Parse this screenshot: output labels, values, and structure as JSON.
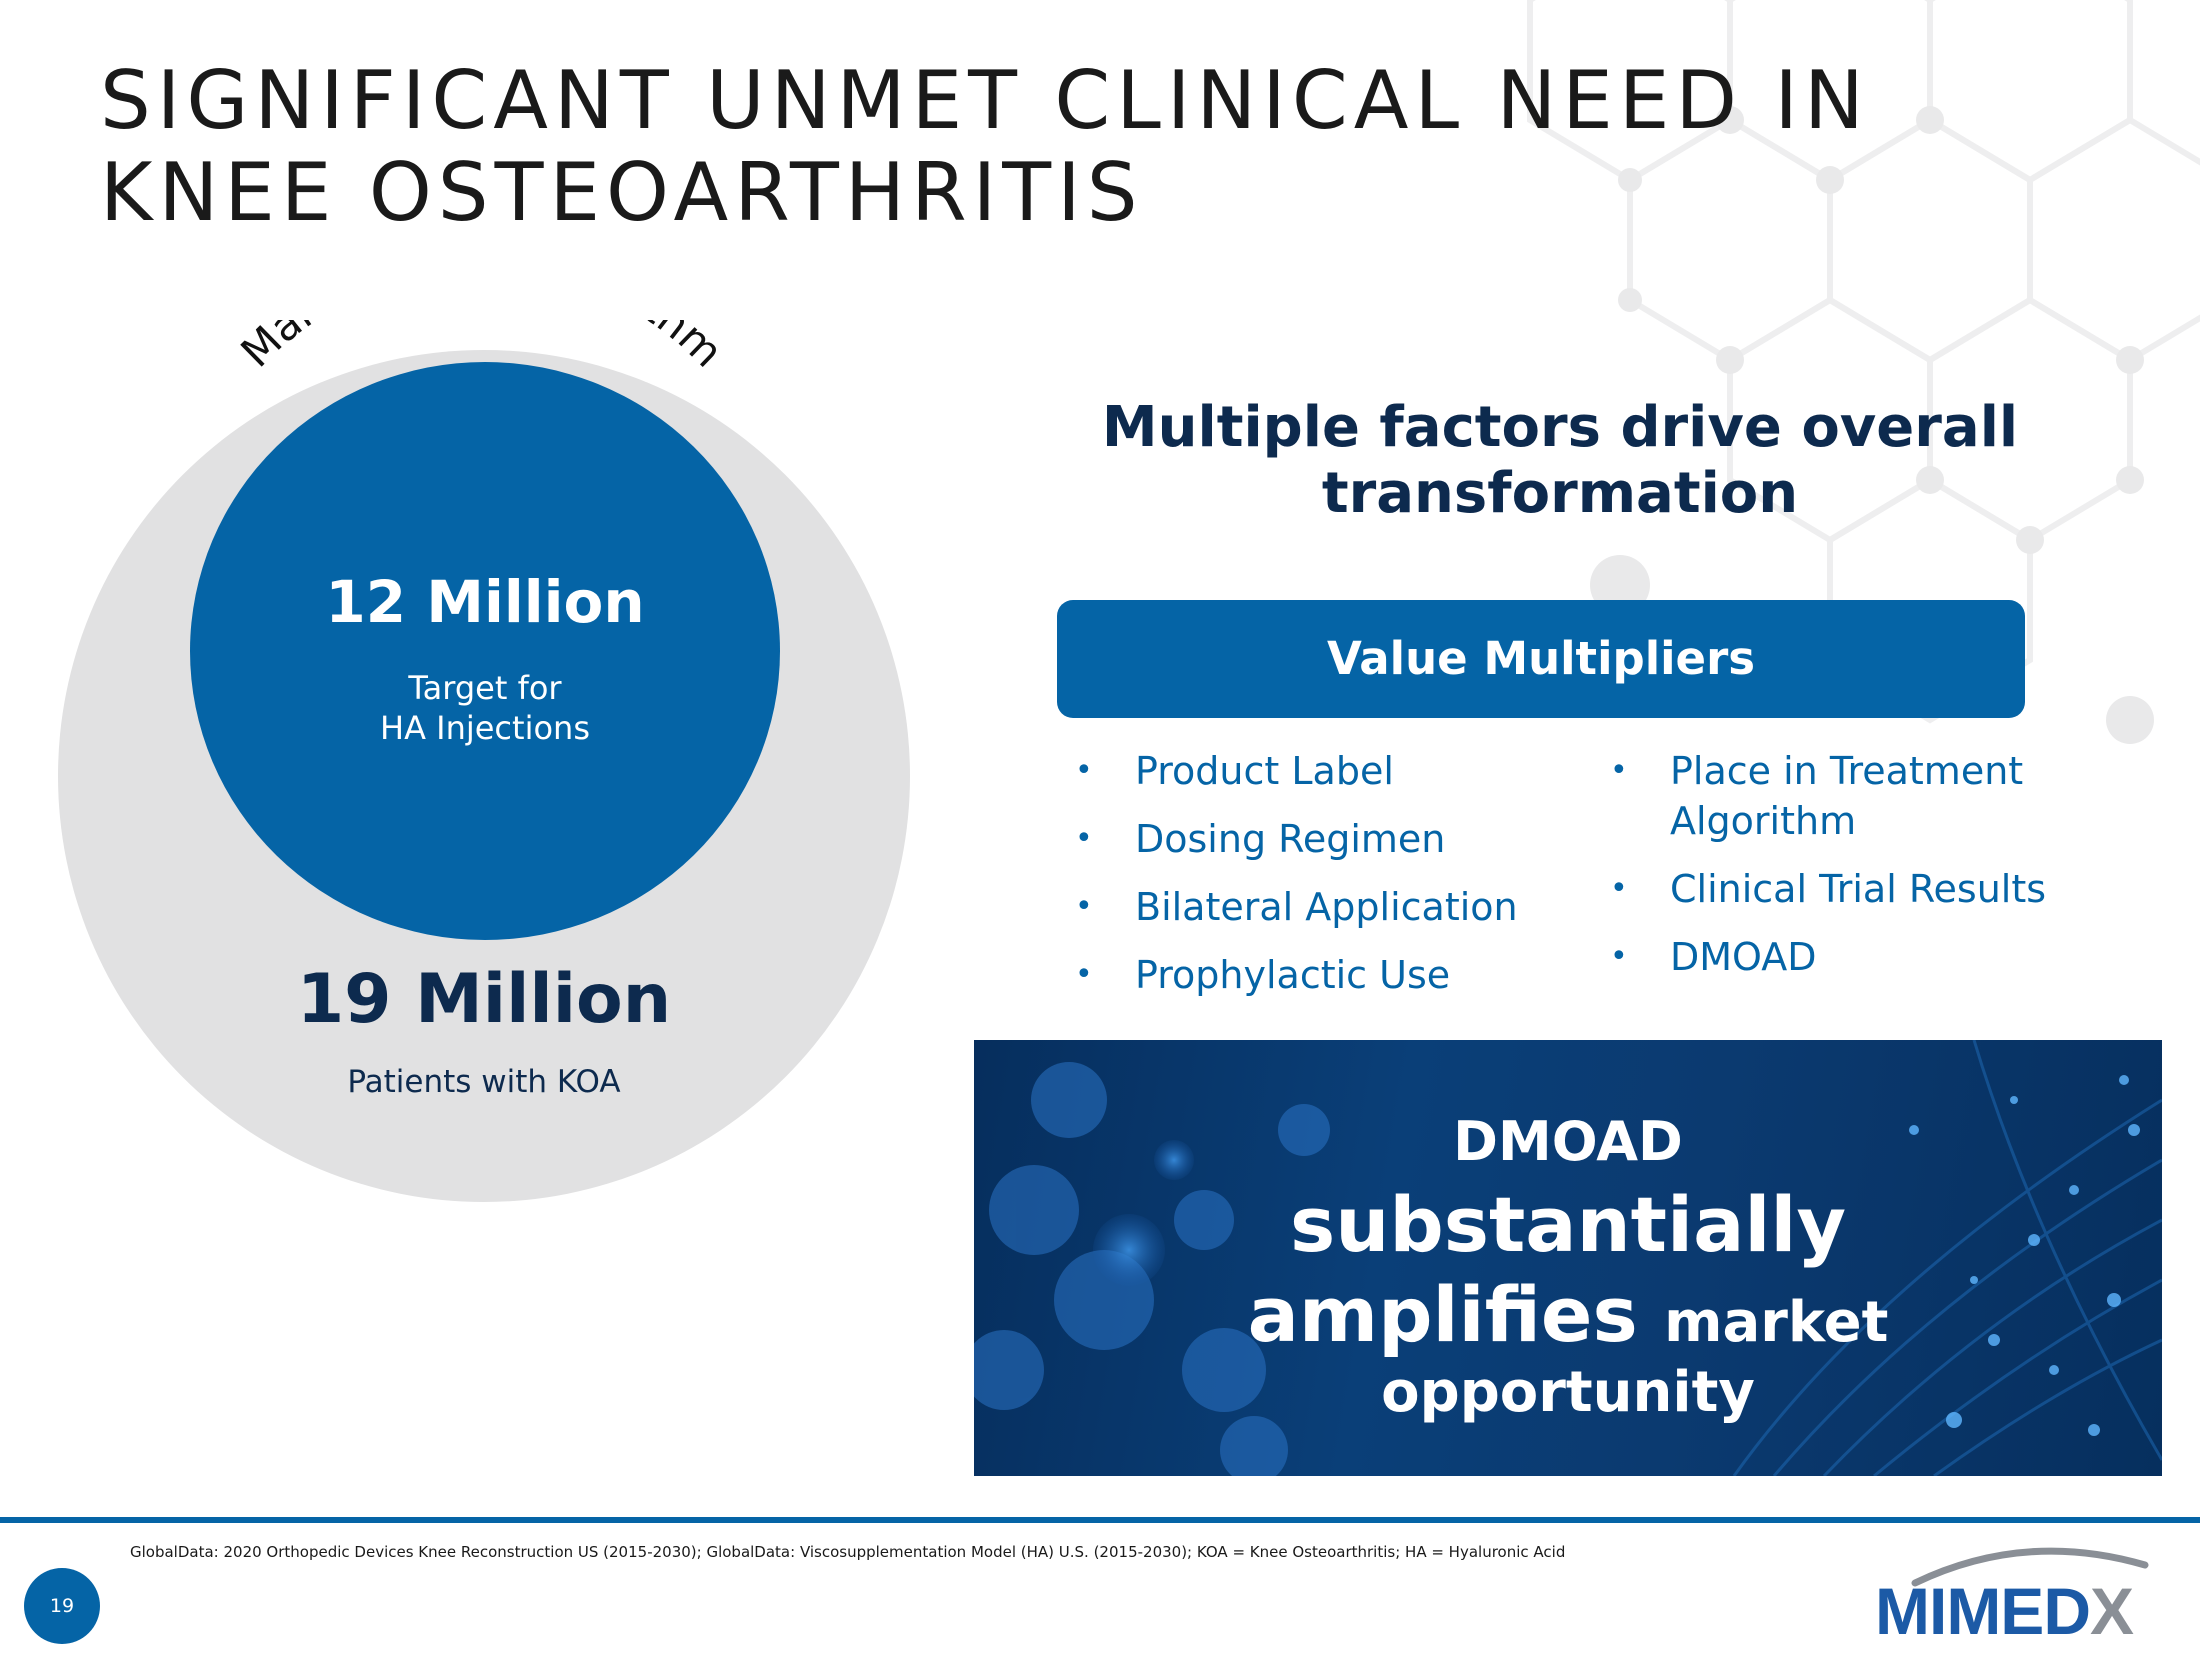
{
  "slide": {
    "title_lines": [
      "SIGNIFICANT UNMET CLINICAL NEED IN",
      "KNEE OSTEOARTHRITIS"
    ]
  },
  "market": {
    "arc_label": "Market Sizing Algorithm",
    "inner": {
      "value": "12 Million",
      "label_lines": [
        "Target for",
        "HA Injections"
      ]
    },
    "outer": {
      "value": "19 Million",
      "label": "Patients with KOA"
    }
  },
  "factors": {
    "heading_lines": [
      "Multiple factors drive overall",
      "transformation"
    ],
    "box_label": "Value Multipliers",
    "bullet_char": "•",
    "left_items": [
      "Product Label",
      "Dosing Regimen",
      "Bilateral Application",
      "Prophylactic Use"
    ],
    "right_items": [
      [
        "Place in Treatment",
        "Algorithm"
      ],
      [
        "Clinical Trial Results"
      ],
      [
        "DMOAD"
      ]
    ]
  },
  "banner": {
    "line1": "DMOAD",
    "line2": "substantially",
    "line3_big": "amplifies",
    "line3_small": "market",
    "line4": "opportunity"
  },
  "footer": {
    "footnote": "GlobalData: 2020 Orthopedic Devices Knee Reconstruction US (2015-2030); GlobalData: Viscosupplementation Model (HA) U.S. (2015-2030); KOA = Knee Osteoarthritis; HA = Hyaluronic Acid",
    "page_number": "19",
    "logo_main": "MIMED",
    "logo_x": "X"
  },
  "colors": {
    "brand_blue": "#0564a6",
    "navy_text": "#0d2a4e",
    "circle_gray": "#e1e1e2"
  }
}
